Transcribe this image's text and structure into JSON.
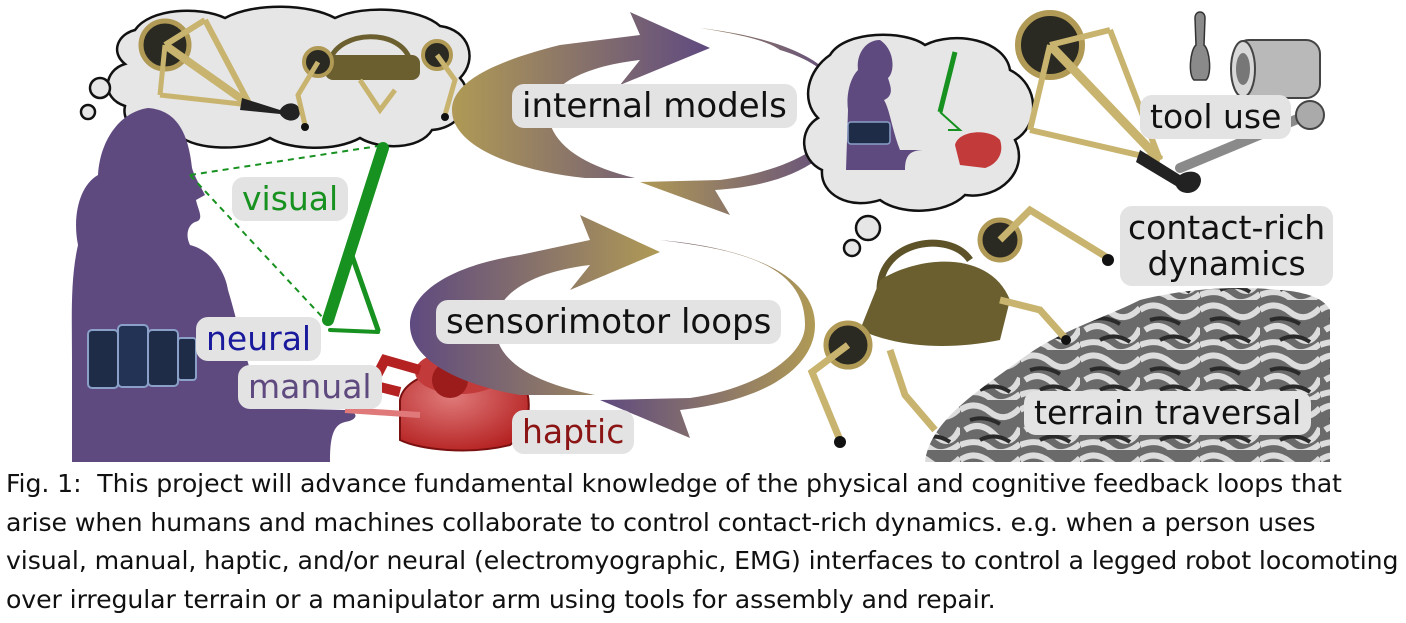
{
  "labels": {
    "internal_models": "internal models",
    "sensorimotor_loops": "sensorimotor loops",
    "visual": "visual",
    "neural": "neural",
    "manual": "manual",
    "haptic": "haptic",
    "tool_use": "tool use",
    "contact_rich_dynamics_line1": "contact-rich",
    "contact_rich_dynamics_line2": "dynamics",
    "terrain_traversal": "terrain traversal"
  },
  "caption": {
    "prefix": "Fig. 1:",
    "text": "This project will advance fundamental knowledge of the physical and cognitive feedback loops that arise when humans and machines collaborate to control contact-rich dynamics. e.g. when a person uses visual, manual, haptic, and/or neural (electromyographic, EMG) interfaces to control a legged robot locomoting over irregular terrain or a manipulator arm using tools for assembly and repair."
  },
  "colors": {
    "person": "#5f4a80",
    "gold": "#b09a55",
    "green": "#17911f",
    "neural_blue": "#1a1a9c",
    "manual_purple": "#5f4a80",
    "haptic_red": "#8b1515",
    "label_bg": "#e3e3e3"
  },
  "icons": [
    "thought-cloud",
    "robot-arm-icon",
    "legged-robot-icon",
    "person-silhouette",
    "emg-band-icon",
    "haptic-device-icon",
    "wrench-icon",
    "socket-icon",
    "terrain-texture"
  ]
}
